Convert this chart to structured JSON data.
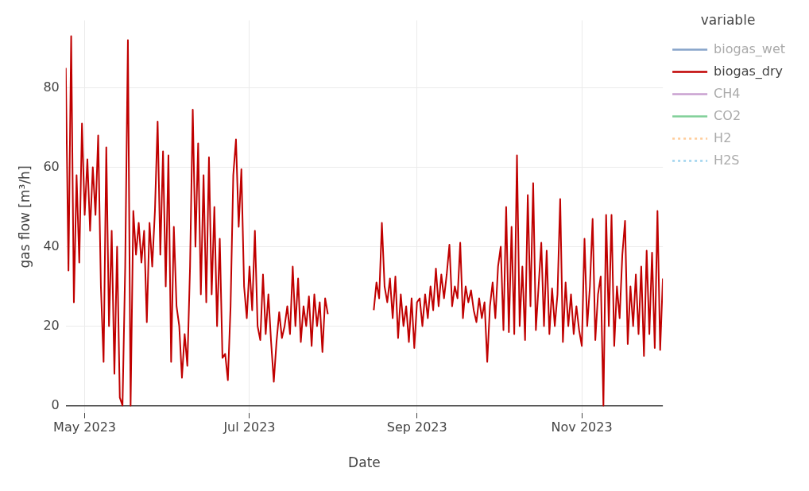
{
  "chart_data": {
    "type": "line",
    "xlabel": "Date",
    "ylabel": "gas flow [m³/h]",
    "legend_title": "variable",
    "legend": "top right",
    "grid": true,
    "marker": "none",
    "xlim": [
      "2023-04-24",
      "2023-12-01"
    ],
    "xticks": [
      {
        "value": "2023-05-01",
        "label": "May 2023"
      },
      {
        "value": "2023-07-01",
        "label": "Jul 2023"
      },
      {
        "value": "2023-09-01",
        "label": "Sep 2023"
      },
      {
        "value": "2023-11-01",
        "label": "Nov 2023"
      }
    ],
    "ylim": [
      -2,
      97
    ],
    "yticks": [
      0,
      20,
      40,
      60,
      80
    ],
    "x": [
      "2023-04-24",
      "2023-04-25",
      "2023-04-26",
      "2023-04-27",
      "2023-04-28",
      "2023-04-29",
      "2023-04-30",
      "2023-05-01",
      "2023-05-02",
      "2023-05-03",
      "2023-05-04",
      "2023-05-05",
      "2023-05-06",
      "2023-05-07",
      "2023-05-08",
      "2023-05-09",
      "2023-05-10",
      "2023-05-11",
      "2023-05-12",
      "2023-05-13",
      "2023-05-14",
      "2023-05-15",
      "2023-05-16",
      "2023-05-17",
      "2023-05-18",
      "2023-05-19",
      "2023-05-20",
      "2023-05-21",
      "2023-05-22",
      "2023-05-23",
      "2023-05-24",
      "2023-05-25",
      "2023-05-26",
      "2023-05-27",
      "2023-05-28",
      "2023-05-29",
      "2023-05-30",
      "2023-05-31",
      "2023-06-01",
      "2023-06-02",
      "2023-06-03",
      "2023-06-04",
      "2023-06-05",
      "2023-06-06",
      "2023-06-07",
      "2023-06-08",
      "2023-06-09",
      "2023-06-10",
      "2023-06-11",
      "2023-06-12",
      "2023-06-13",
      "2023-06-14",
      "2023-06-15",
      "2023-06-16",
      "2023-06-17",
      "2023-06-18",
      "2023-06-19",
      "2023-06-20",
      "2023-06-21",
      "2023-06-22",
      "2023-06-23",
      "2023-06-24",
      "2023-06-25",
      "2023-06-26",
      "2023-06-27",
      "2023-06-28",
      "2023-06-29",
      "2023-06-30",
      "2023-07-01",
      "2023-07-02",
      "2023-07-03",
      "2023-07-04",
      "2023-07-05",
      "2023-07-06",
      "2023-07-07",
      "2023-07-08",
      "2023-07-09",
      "2023-07-10",
      "2023-07-11",
      "2023-07-12",
      "2023-07-13",
      "2023-07-14",
      "2023-07-15",
      "2023-07-16",
      "2023-07-17",
      "2023-07-18",
      "2023-07-19",
      "2023-07-20",
      "2023-07-21",
      "2023-07-22",
      "2023-07-23",
      "2023-07-24",
      "2023-07-25",
      "2023-07-26",
      "2023-07-27",
      "2023-07-28",
      "2023-07-29",
      "2023-07-30",
      "2023-08-08",
      "2023-08-16",
      "2023-08-17",
      "2023-08-18",
      "2023-08-19",
      "2023-08-20",
      "2023-08-21",
      "2023-08-22",
      "2023-08-23",
      "2023-08-24",
      "2023-08-25",
      "2023-08-26",
      "2023-08-27",
      "2023-08-28",
      "2023-08-29",
      "2023-08-30",
      "2023-08-31",
      "2023-09-01",
      "2023-09-02",
      "2023-09-03",
      "2023-09-04",
      "2023-09-05",
      "2023-09-06",
      "2023-09-07",
      "2023-09-08",
      "2023-09-09",
      "2023-09-10",
      "2023-09-11",
      "2023-09-12",
      "2023-09-13",
      "2023-09-14",
      "2023-09-15",
      "2023-09-16",
      "2023-09-17",
      "2023-09-18",
      "2023-09-19",
      "2023-09-20",
      "2023-09-21",
      "2023-09-22",
      "2023-09-23",
      "2023-09-24",
      "2023-09-25",
      "2023-09-26",
      "2023-09-27",
      "2023-09-28",
      "2023-09-29",
      "2023-09-30",
      "2023-10-01",
      "2023-10-02",
      "2023-10-03",
      "2023-10-04",
      "2023-10-05",
      "2023-10-06",
      "2023-10-07",
      "2023-10-08",
      "2023-10-09",
      "2023-10-10",
      "2023-10-11",
      "2023-10-12",
      "2023-10-13",
      "2023-10-14",
      "2023-10-15",
      "2023-10-16",
      "2023-10-17",
      "2023-10-18",
      "2023-10-19",
      "2023-10-20",
      "2023-10-21",
      "2023-10-22",
      "2023-10-23",
      "2023-10-24",
      "2023-10-25",
      "2023-10-26",
      "2023-10-27",
      "2023-10-28",
      "2023-10-29",
      "2023-10-30",
      "2023-10-31",
      "2023-11-01",
      "2023-11-02",
      "2023-11-03",
      "2023-11-04",
      "2023-11-05",
      "2023-11-06",
      "2023-11-07",
      "2023-11-08",
      "2023-11-09",
      "2023-11-10",
      "2023-11-11",
      "2023-11-12",
      "2023-11-13",
      "2023-11-14",
      "2023-11-15",
      "2023-11-16",
      "2023-11-17",
      "2023-11-18",
      "2023-11-19",
      "2023-11-20",
      "2023-11-21",
      "2023-11-22",
      "2023-11-23",
      "2023-11-24",
      "2023-11-25",
      "2023-11-26",
      "2023-11-27",
      "2023-11-28",
      "2023-11-29",
      "2023-11-30",
      "2023-12-01"
    ],
    "series": [
      {
        "name": "biogas_wet",
        "color": "#86a3c9",
        "values": [
          null,
          null,
          null,
          null,
          null,
          null,
          null,
          null,
          null,
          null,
          null,
          null,
          null,
          null,
          null,
          null,
          null,
          null,
          null,
          null,
          null,
          null,
          null,
          null,
          null,
          null,
          null,
          null,
          null,
          null,
          null,
          null,
          null,
          null,
          null,
          null,
          null,
          null,
          null,
          null,
          null,
          null,
          null,
          null,
          null,
          null,
          null,
          null,
          null,
          null,
          null,
          null,
          null,
          null,
          null,
          null,
          null,
          null,
          null,
          null,
          null,
          null,
          null,
          null,
          null,
          null,
          null,
          null,
          null,
          null,
          null,
          null,
          null,
          null,
          null,
          null,
          null,
          null,
          null,
          null,
          null,
          null,
          null,
          null,
          null,
          null,
          null,
          null,
          null,
          null,
          null,
          null,
          null,
          null,
          null,
          null,
          null,
          null,
          null,
          null,
          null,
          null,
          null,
          null,
          null,
          null,
          null,
          null,
          null,
          null,
          null,
          null,
          null,
          null,
          null,
          null,
          null,
          null,
          null,
          null,
          null,
          null,
          null,
          null,
          null,
          null,
          null,
          null,
          null,
          null,
          null,
          null,
          null,
          null,
          null,
          null,
          null,
          null,
          null,
          null,
          null,
          null,
          null,
          null,
          null,
          null,
          null,
          null,
          null,
          null,
          null,
          null,
          null,
          null,
          null,
          null,
          null,
          null,
          null,
          null,
          null,
          null,
          null,
          null,
          null,
          null,
          null,
          null,
          null,
          null,
          null,
          null,
          null,
          null,
          null,
          null,
          null,
          null,
          null,
          null,
          null,
          null,
          null,
          null,
          null,
          null,
          null,
          null,
          null,
          null,
          null,
          null,
          null,
          null,
          null,
          null,
          null,
          null,
          null,
          null,
          null,
          null,
          null,
          null,
          null,
          null,
          null
        ]
      },
      {
        "name": "biogas_dry",
        "color": "#c00000",
        "values": [
          85,
          34,
          93,
          26,
          58,
          36,
          71,
          48,
          62,
          44,
          60,
          48,
          68,
          30,
          11,
          65,
          20,
          44,
          8,
          40,
          2,
          0,
          35,
          92,
          0,
          49,
          38,
          46,
          36,
          44,
          21,
          46,
          35,
          49,
          71.5,
          38,
          64,
          30,
          63,
          11,
          45,
          25,
          20,
          7,
          18,
          10,
          35,
          74.5,
          40,
          66,
          28,
          58,
          26,
          62.5,
          28,
          50,
          20,
          42,
          12,
          13,
          6.4,
          25,
          58,
          67,
          45,
          59.5,
          30,
          22,
          35,
          24,
          44,
          20,
          16.5,
          33,
          18,
          28,
          16,
          6,
          16,
          23.5,
          17,
          20,
          25,
          18,
          35,
          20,
          32,
          16,
          25,
          20,
          27.5,
          15,
          28,
          20,
          26,
          13.5,
          27,
          23,
          null,
          24,
          31,
          27,
          46,
          30,
          26,
          32,
          22,
          32.5,
          17,
          28,
          20,
          25,
          16,
          27,
          14.5,
          26,
          27,
          20,
          28,
          22,
          30,
          24,
          34.5,
          25,
          33,
          27,
          33,
          40.5,
          25,
          30,
          27,
          41,
          22,
          30,
          26,
          29,
          24,
          21,
          27,
          22,
          26,
          11,
          25,
          31,
          22,
          35,
          40,
          19,
          50,
          18.5,
          45,
          18,
          63,
          20,
          35,
          16.5,
          53,
          25,
          56,
          19,
          30,
          41,
          20,
          39,
          18,
          29.5,
          20,
          28,
          52,
          16,
          31,
          20,
          28,
          18,
          25,
          19,
          15,
          42,
          20,
          30,
          47,
          16.5,
          28,
          32.5,
          0,
          48,
          20,
          48,
          15,
          30,
          22,
          38,
          46.5,
          15.5,
          30,
          20,
          33,
          18,
          35,
          12.5,
          39,
          18,
          38.5,
          14.5,
          49,
          14,
          32
        ]
      },
      {
        "name": "CH4",
        "color": "#c9a0d0",
        "values": [
          null,
          null,
          null,
          null,
          null,
          null,
          null,
          null,
          null,
          null,
          null,
          null,
          null,
          null,
          null,
          null,
          null,
          null,
          null,
          null,
          null,
          null,
          null,
          null,
          null,
          null,
          null,
          null,
          null,
          null,
          null,
          null,
          null,
          null,
          null,
          null,
          null,
          null,
          null,
          null,
          null,
          null,
          null,
          null,
          null,
          null,
          null,
          null,
          null,
          null,
          null,
          null,
          null,
          null,
          null,
          null,
          null,
          null,
          null,
          null,
          null,
          null,
          null,
          null,
          null,
          null,
          null,
          null,
          null,
          null,
          null,
          null,
          null,
          null,
          null,
          null,
          null,
          null,
          null,
          null,
          null,
          null,
          null,
          null,
          null,
          null,
          null,
          null,
          null,
          null,
          null,
          null,
          null,
          null,
          null,
          null,
          null,
          null,
          null,
          null,
          null,
          null,
          null,
          null,
          null,
          null,
          null,
          null,
          null,
          null,
          null,
          null,
          null,
          null,
          null,
          null,
          null,
          null,
          null,
          null,
          null,
          null,
          null,
          null,
          null,
          null,
          null,
          null,
          null,
          null,
          null,
          null,
          null,
          null,
          null,
          null,
          null,
          null,
          null,
          null,
          null,
          null,
          null,
          null,
          null,
          null,
          null,
          null,
          null,
          null,
          null,
          null,
          null,
          null,
          null,
          null,
          null,
          null,
          null,
          null,
          null,
          null,
          null,
          null,
          null,
          null,
          null,
          null,
          null,
          null,
          null,
          null,
          null,
          null,
          null,
          null,
          null,
          null,
          null,
          null,
          null,
          null,
          null,
          null,
          null,
          null,
          null,
          null,
          null,
          null,
          null,
          null,
          null,
          null,
          null,
          null,
          null,
          null,
          null,
          null,
          null,
          null,
          null,
          null,
          null,
          null,
          null
        ]
      },
      {
        "name": "CO2",
        "color": "#80cf98",
        "values": [
          null,
          null,
          null,
          null,
          null,
          null,
          null,
          null,
          null,
          null,
          null,
          null,
          null,
          null,
          null,
          null,
          null,
          null,
          null,
          null,
          null,
          null,
          null,
          null,
          null,
          null,
          null,
          null,
          null,
          null,
          null,
          null,
          null,
          null,
          null,
          null,
          null,
          null,
          null,
          null,
          null,
          null,
          null,
          null,
          null,
          null,
          null,
          null,
          null,
          null,
          null,
          null,
          null,
          null,
          null,
          null,
          null,
          null,
          null,
          null,
          null,
          null,
          null,
          null,
          null,
          null,
          null,
          null,
          null,
          null,
          null,
          null,
          null,
          null,
          null,
          null,
          null,
          null,
          null,
          null,
          null,
          null,
          null,
          null,
          null,
          null,
          null,
          null,
          null,
          null,
          null,
          null,
          null,
          null,
          null,
          null,
          null,
          null,
          null,
          null,
          null,
          null,
          null,
          null,
          null,
          null,
          null,
          null,
          null,
          null,
          null,
          null,
          null,
          null,
          null,
          null,
          null,
          null,
          null,
          null,
          null,
          null,
          null,
          null,
          null,
          null,
          null,
          null,
          null,
          null,
          null,
          null,
          null,
          null,
          null,
          null,
          null,
          null,
          null,
          null,
          null,
          null,
          null,
          null,
          null,
          null,
          null,
          null,
          null,
          null,
          null,
          null,
          null,
          null,
          null,
          null,
          null,
          null,
          null,
          null,
          null,
          null,
          null,
          null,
          null,
          null,
          null,
          null,
          null,
          null,
          null,
          null,
          null,
          null,
          null,
          null,
          null,
          null,
          null,
          null,
          null,
          null,
          null,
          null,
          null,
          null,
          null,
          null,
          null,
          null,
          null,
          null,
          null,
          null,
          null,
          null,
          null,
          null,
          null,
          null,
          null,
          null,
          null,
          null,
          null,
          null,
          null
        ]
      },
      {
        "name": "H2",
        "color": "#ffcc99",
        "line_style": "dotted",
        "values": [
          null,
          null,
          null,
          null,
          null,
          null,
          null,
          null,
          null,
          null,
          null,
          null,
          null,
          null,
          null,
          null,
          null,
          null,
          null,
          null,
          null,
          null,
          null,
          null,
          null,
          null,
          null,
          null,
          null,
          null,
          null,
          null,
          null,
          null,
          null,
          null,
          null,
          null,
          null,
          null,
          null,
          null,
          null,
          null,
          null,
          null,
          null,
          null,
          null,
          null,
          null,
          null,
          null,
          null,
          null,
          null,
          null,
          null,
          null,
          null,
          null,
          null,
          null,
          null,
          null,
          null,
          null,
          null,
          null,
          null,
          null,
          null,
          null,
          null,
          null,
          null,
          null,
          null,
          null,
          null,
          null,
          null,
          null,
          null,
          null,
          null,
          null,
          null,
          null,
          null,
          null,
          null,
          null,
          null,
          null,
          null,
          null,
          null,
          null,
          null,
          null,
          null,
          null,
          null,
          null,
          null,
          null,
          null,
          null,
          null,
          null,
          null,
          null,
          null,
          null,
          null,
          null,
          null,
          null,
          null,
          null,
          null,
          null,
          null,
          null,
          null,
          null,
          null,
          null,
          null,
          null,
          null,
          null,
          null,
          null,
          null,
          null,
          null,
          null,
          null,
          null,
          null,
          null,
          null,
          null,
          null,
          null,
          null,
          null,
          null,
          null,
          null,
          null,
          null,
          null,
          null,
          null,
          null,
          null,
          null,
          null,
          null,
          null,
          null,
          null,
          null,
          null,
          null,
          null,
          null,
          null,
          null,
          null,
          null,
          null,
          null,
          null,
          null,
          null,
          null,
          null,
          null,
          null,
          null,
          null,
          null,
          null,
          null,
          null,
          null,
          null,
          null,
          null,
          null,
          null,
          null,
          null,
          null,
          null,
          null,
          null,
          null,
          null,
          null,
          null,
          null,
          null
        ]
      },
      {
        "name": "H2S",
        "color": "#9fd3ee",
        "line_style": "dotted",
        "values": [
          null,
          null,
          null,
          null,
          null,
          null,
          null,
          null,
          null,
          null,
          null,
          null,
          null,
          null,
          null,
          null,
          null,
          null,
          null,
          null,
          null,
          null,
          null,
          null,
          null,
          null,
          null,
          null,
          null,
          null,
          null,
          null,
          null,
          null,
          null,
          null,
          null,
          null,
          null,
          null,
          null,
          null,
          null,
          null,
          null,
          null,
          null,
          null,
          null,
          null,
          null,
          null,
          null,
          null,
          null,
          null,
          null,
          null,
          null,
          null,
          null,
          null,
          null,
          null,
          null,
          null,
          null,
          null,
          null,
          null,
          null,
          null,
          null,
          null,
          null,
          null,
          null,
          null,
          null,
          null,
          null,
          null,
          null,
          null,
          null,
          null,
          null,
          null,
          null,
          null,
          null,
          null,
          null,
          null,
          null,
          null,
          null,
          null,
          null,
          null,
          null,
          null,
          null,
          null,
          null,
          null,
          null,
          null,
          null,
          null,
          null,
          null,
          null,
          null,
          null,
          null,
          null,
          null,
          null,
          null,
          null,
          null,
          null,
          null,
          null,
          null,
          null,
          null,
          null,
          null,
          null,
          null,
          null,
          null,
          null,
          null,
          null,
          null,
          null,
          null,
          null,
          null,
          null,
          null,
          null,
          null,
          null,
          null,
          null,
          null,
          null,
          null,
          null,
          null,
          null,
          null,
          null,
          null,
          null,
          null,
          null,
          null,
          null,
          null,
          null,
          null,
          null,
          null,
          null,
          null,
          null,
          null,
          null,
          null,
          null,
          null,
          null,
          null,
          null,
          null,
          null,
          null,
          null,
          null,
          null,
          null,
          null,
          null,
          null,
          null,
          null,
          null,
          null,
          null,
          null,
          null,
          null,
          null,
          null,
          null,
          null,
          null,
          null,
          null,
          null,
          null,
          null
        ]
      }
    ]
  }
}
